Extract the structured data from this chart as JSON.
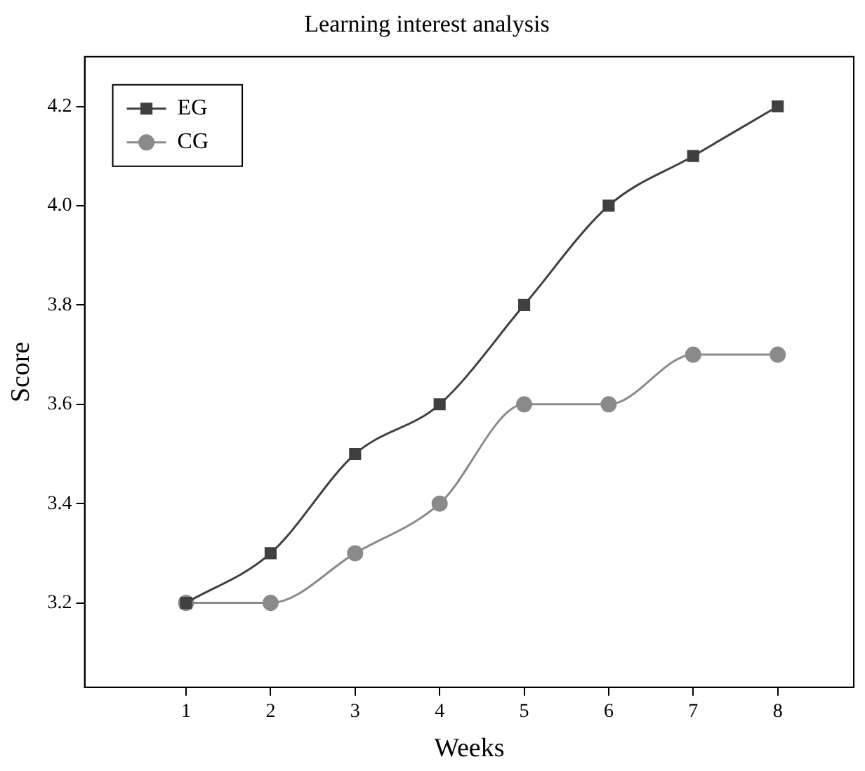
{
  "chart_data": {
    "type": "line",
    "title": "Learning interest analysis",
    "xlabel": "Weeks",
    "ylabel": "Score",
    "x": [
      1,
      2,
      3,
      4,
      5,
      6,
      7,
      8
    ],
    "series": [
      {
        "name": "EG",
        "color": "#404040",
        "marker": "square",
        "values": [
          3.2,
          3.3,
          3.5,
          3.6,
          3.8,
          4.0,
          4.1,
          4.2
        ]
      },
      {
        "name": "CG",
        "color": "#8a8a8a",
        "marker": "circle",
        "values": [
          3.2,
          3.2,
          3.3,
          3.4,
          3.6,
          3.6,
          3.7,
          3.7
        ]
      }
    ],
    "xlim": [
      -0.2,
      8.9
    ],
    "xticks": [
      1,
      2,
      3,
      4,
      5,
      6,
      7,
      8
    ],
    "ylim": [
      3.03,
      4.3
    ],
    "yticks": [
      3.2,
      3.4,
      3.6,
      3.8,
      {
        "value": 4,
        "label": "4.0"
      },
      4.2
    ],
    "grid": false,
    "legend": "top left"
  }
}
